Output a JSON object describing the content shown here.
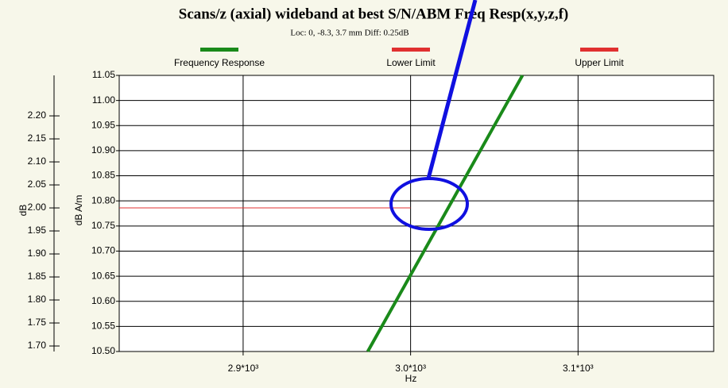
{
  "chart_data": {
    "type": "line",
    "title": "Scans/z (axial) wideband at best S/N/ABM Freq Resp(x,y,z,f)",
    "subtitle": "Loc: 0, -8.3, 3.7 mm Diff: 0.25dB",
    "xlabel": "Hz",
    "ylabel": "dB A/m",
    "y2label": "dB",
    "xlim": [
      2826,
      3181
    ],
    "xticks": [
      {
        "value": 2900,
        "label": "2.9*10³"
      },
      {
        "value": 3000,
        "label": "3.0*10³"
      },
      {
        "value": 3100,
        "label": "3.1*10³"
      }
    ],
    "ylim": [
      10.5,
      11.05
    ],
    "yticks": [
      {
        "value": 10.5,
        "label": "10.50"
      },
      10.55,
      {
        "value": 10.6,
        "label": "10.60"
      },
      10.65,
      {
        "value": 10.7,
        "label": "10.70"
      },
      10.75,
      {
        "value": 10.8,
        "label": "10.80"
      },
      10.85,
      {
        "value": 10.9,
        "label": "10.90"
      },
      10.95,
      {
        "value": 11,
        "label": "11.00"
      },
      11.05
    ],
    "y2lim": [
      1.688,
      2.288
    ],
    "y2ticks": [
      {
        "value": 1.7,
        "label": "1.70"
      },
      1.75,
      {
        "value": 1.8,
        "label": "1.80"
      },
      1.85,
      {
        "value": 1.9,
        "label": "1.90"
      },
      1.95,
      {
        "value": 2,
        "label": "2.00"
      },
      2.05,
      {
        "value": 2.1,
        "label": "2.10"
      },
      2.15,
      {
        "value": 2.2,
        "label": "2.20"
      }
    ],
    "grid": true,
    "series": [
      {
        "name": "Frequency Response",
        "color": "#1a8a1a",
        "x": [
          2974.4,
          3066.8
        ],
        "values": [
          10.5,
          11.05
        ]
      },
      {
        "name": "Lower Limit",
        "color": "#e03030",
        "axis": "y2",
        "x": [
          2826,
          3000
        ],
        "values": [
          2,
          2
        ]
      },
      {
        "name": "Upper Limit",
        "color": "#e03030",
        "axis": "y2",
        "x": [],
        "values": []
      }
    ]
  }
}
